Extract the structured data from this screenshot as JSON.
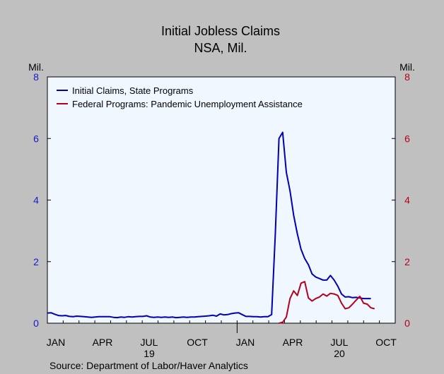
{
  "chart_data": {
    "type": "line",
    "title": "Initial Jobless Claims",
    "subtitle": "NSA, Mil.",
    "left_unit": "Mil.",
    "right_unit": "Mil.",
    "source": "Source:  Department of Labor/Haver Analytics",
    "ylim": [
      0,
      8
    ],
    "yticks": [
      "0",
      "2",
      "4",
      "6",
      "8"
    ],
    "x_tick_labels": [
      "JAN",
      "APR",
      "JUL",
      "OCT",
      "JAN",
      "APR",
      "JUL",
      "OCT"
    ],
    "x_year_labels": [
      {
        "label": "19",
        "under": "JUL"
      },
      {
        "label": "20",
        "under": "JUL"
      }
    ],
    "grid": false,
    "legend_position": "top-left",
    "colors": {
      "state": "#0000b4",
      "federal": "#b4001e",
      "left_axis": "#1a1acc",
      "right_axis": "#b4001e",
      "plot_bg": "#f0f7ff",
      "page_bg": "#c0c0c0"
    },
    "series": [
      {
        "name": "Initial Claims, State Programs",
        "key": "state",
        "axis": "left",
        "start_week": 0,
        "values": [
          0.33,
          0.34,
          0.29,
          0.25,
          0.24,
          0.25,
          0.22,
          0.21,
          0.23,
          0.22,
          0.21,
          0.2,
          0.19,
          0.2,
          0.21,
          0.21,
          0.21,
          0.21,
          0.19,
          0.18,
          0.2,
          0.19,
          0.21,
          0.2,
          0.21,
          0.22,
          0.22,
          0.24,
          0.2,
          0.19,
          0.2,
          0.19,
          0.2,
          0.19,
          0.2,
          0.18,
          0.19,
          0.2,
          0.19,
          0.2,
          0.2,
          0.21,
          0.22,
          0.23,
          0.24,
          0.26,
          0.23,
          0.3,
          0.27,
          0.28,
          0.31,
          0.33,
          0.34,
          0.28,
          0.22,
          0.22,
          0.21,
          0.21,
          0.2,
          0.21,
          0.21,
          0.28,
          2.9,
          6.0,
          6.2,
          4.9,
          4.3,
          3.5,
          2.9,
          2.4,
          2.1,
          1.9,
          1.6,
          1.5,
          1.45,
          1.4,
          1.4,
          1.55,
          1.4,
          1.2,
          0.95,
          0.85,
          0.86,
          0.83,
          0.84,
          0.82,
          0.8,
          0.8,
          0.8
        ]
      },
      {
        "name": "Federal Programs: Pandemic Unemployment Assistance",
        "key": "federal",
        "axis": "right",
        "start_week": 63,
        "values": [
          0.0,
          0.03,
          0.2,
          0.8,
          1.05,
          0.9,
          1.3,
          1.35,
          0.82,
          0.72,
          0.8,
          0.85,
          0.95,
          0.88,
          0.97,
          0.95,
          0.9,
          0.65,
          0.47,
          0.5,
          0.62,
          0.75,
          0.87,
          0.65,
          0.62,
          0.5,
          0.47
        ]
      }
    ]
  }
}
